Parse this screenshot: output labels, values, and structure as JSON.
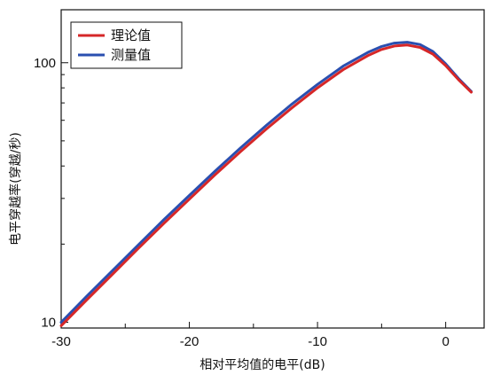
{
  "chart_data": {
    "type": "line",
    "title": "",
    "xlabel": "相对平均值的电平(dB)",
    "ylabel": "电平穿越率(穿越/秒)",
    "xlim": [
      -30,
      3
    ],
    "ylim": [
      9.5,
      160
    ],
    "yscale": "log",
    "x_ticks": [
      -30,
      -20,
      -10,
      0
    ],
    "x_tick_labels": [
      "-30",
      "-20",
      "-10",
      "0"
    ],
    "y_ticks_labeled": [
      10,
      100
    ],
    "y_tick_labels": [
      "10",
      "100"
    ],
    "grid": false,
    "legend_position": "top-left",
    "series": [
      {
        "name": "理论值",
        "color": "#d62728",
        "x": [
          -30,
          -28,
          -26,
          -24,
          -22,
          -20,
          -18,
          -16,
          -14,
          -12,
          -10,
          -8,
          -6,
          -5,
          -4,
          -3,
          -2,
          -1,
          0,
          1,
          2
        ],
        "y": [
          9.7,
          12.2,
          15.3,
          19.2,
          24.0,
          29.8,
          37.0,
          45.5,
          55.5,
          67.0,
          80.0,
          94.0,
          107.0,
          112.5,
          116.0,
          117.0,
          114.5,
          108.0,
          97.5,
          86.0,
          77.0
        ]
      },
      {
        "name": "测量值",
        "color": "#2a4fb0",
        "x": [
          -30,
          -28,
          -26,
          -24,
          -22,
          -20,
          -18,
          -16,
          -14,
          -12,
          -10,
          -8,
          -6,
          -5,
          -4,
          -3,
          -2,
          -1,
          0,
          1,
          2
        ],
        "y": [
          10.0,
          12.6,
          15.8,
          19.8,
          24.8,
          30.8,
          38.2,
          47.0,
          57.3,
          69.3,
          82.5,
          97.0,
          110.0,
          115.5,
          119.0,
          120.0,
          117.5,
          110.5,
          99.0,
          87.0,
          77.5
        ]
      }
    ]
  }
}
